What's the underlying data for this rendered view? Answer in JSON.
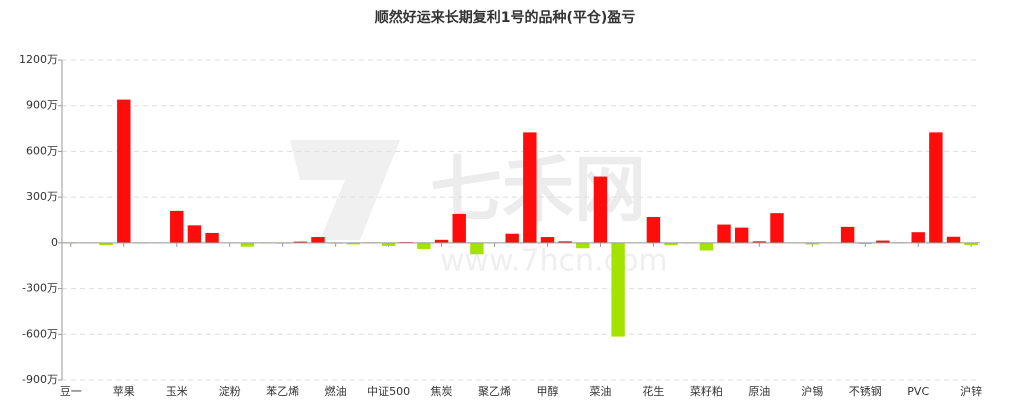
{
  "chart_data": {
    "type": "bar",
    "title": "顺然好运来长期复利1号的品种(平仓)盈亏",
    "watermark": "七禾网",
    "watermark_url": "www.7hcn.com",
    "categories": [
      "豆一",
      null,
      null,
      "苹果",
      null,
      null,
      "玉米",
      null,
      null,
      "淀粉",
      null,
      null,
      "苯乙烯",
      null,
      null,
      "燃油",
      null,
      null,
      "中证500",
      null,
      null,
      "焦炭",
      null,
      null,
      "聚乙烯",
      null,
      null,
      "甲醇",
      null,
      null,
      "菜油",
      null,
      null,
      "花生",
      null,
      null,
      "菜籽粕",
      null,
      null,
      "原油",
      null,
      null,
      "沪锡",
      null,
      null,
      "不锈钢",
      null,
      null,
      "PVC",
      null,
      null,
      "沪锌"
    ],
    "values": [
      -2,
      2,
      -15,
      940,
      -3,
      2,
      210,
      115,
      65,
      0,
      -25,
      -3,
      -5,
      8,
      38,
      -5,
      -10,
      3,
      -20,
      5,
      -40,
      20,
      190,
      -75,
      0,
      60,
      725,
      38,
      10,
      -35,
      435,
      -615,
      0,
      170,
      -15,
      -3,
      -50,
      120,
      100,
      10,
      195,
      -3,
      -10,
      2,
      105,
      -8,
      15,
      3,
      70,
      725,
      40,
      -15
    ],
    "color": "#ff0d0d",
    "negative_color": "#a4e200",
    "ylim": [
      -900,
      1200
    ],
    "yticks": [
      {
        "value": -900,
        "label": "-900万"
      },
      {
        "value": -600,
        "label": "-600万"
      },
      {
        "value": -300,
        "label": "-300万"
      },
      0,
      {
        "value": 300,
        "label": "300万"
      },
      {
        "value": 600,
        "label": "600万"
      },
      {
        "value": 900,
        "label": "900万"
      },
      {
        "value": 1200,
        "label": "1200万"
      }
    ],
    "grid": true
  }
}
